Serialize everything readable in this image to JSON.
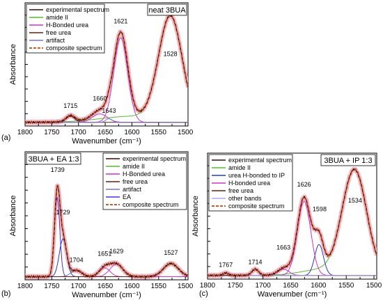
{
  "colors": {
    "experimental": "#3a0a0a",
    "halo": "#f2b5bf",
    "amide": "#55bb33",
    "hbonded": "#cc33cc",
    "hbonded_ip": "#2a3ab8",
    "free": "#5a2410",
    "artifact": "#7777cc",
    "ea": "#5a2ad0",
    "other": "#aaaaee",
    "composite": "#b84a10"
  },
  "chart_data": [
    {
      "id": "a",
      "type": "line",
      "panel_letter": "(a)",
      "title": "neat 3BUA",
      "xlabel": "Wavenumber (cm⁻¹)",
      "ylabel": "Absorbance",
      "xlim": [
        1800,
        1495
      ],
      "ylim": [
        -0.02,
        1.0
      ],
      "x_ticks": [
        1800,
        1750,
        1700,
        1650,
        1600,
        1550,
        1500
      ],
      "legend_position": "top-left",
      "legend": [
        {
          "label": "experimental spectrum",
          "color": "experimental",
          "style": "solid"
        },
        {
          "label": "amide II",
          "color": "amide",
          "style": "solid"
        },
        {
          "label": "H-Bonded urea",
          "color": "hbonded",
          "style": "solid"
        },
        {
          "label": "free urea",
          "color": "free",
          "style": "solid"
        },
        {
          "label": "artifact",
          "color": "artifact",
          "style": "solid"
        },
        {
          "label": "composite spectrum",
          "color": "composite",
          "style": "dashed"
        }
      ],
      "peaks": [
        {
          "label": "1715",
          "x": 1715,
          "y": 0.13
        },
        {
          "label": "1660",
          "x": 1660,
          "y": 0.19
        },
        {
          "label": "1643",
          "x": 1643,
          "y": 0.09
        },
        {
          "label": "1621",
          "x": 1621,
          "y": 0.83
        },
        {
          "label": "1528",
          "x": 1528,
          "y": 0.56
        }
      ],
      "baseline": 0.01,
      "components": [
        {
          "color": "amide",
          "peaks": [
            {
              "c": 1528,
              "w": 22,
              "h": 0.86
            },
            {
              "c": 1600,
              "w": 60,
              "h": 0.05
            }
          ]
        },
        {
          "color": "hbonded",
          "peaks": [
            {
              "c": 1621,
              "w": 13,
              "h": 0.7
            }
          ]
        },
        {
          "color": "hbonded",
          "peaks": [
            {
              "c": 1660,
              "w": 14,
              "h": 0.07
            }
          ]
        },
        {
          "color": "free",
          "peaks": [
            {
              "c": 1715,
              "w": 8,
              "h": 0.05
            }
          ]
        },
        {
          "color": "artifact",
          "peaks": [
            {
              "c": 1643,
              "w": 6,
              "h": 0.03
            }
          ]
        }
      ],
      "total_peaks": [
        {
          "c": 1528,
          "w": 22,
          "h": 0.86
        },
        {
          "c": 1600,
          "w": 60,
          "h": 0.05
        },
        {
          "c": 1621,
          "w": 13,
          "h": 0.7
        },
        {
          "c": 1660,
          "w": 14,
          "h": 0.07
        },
        {
          "c": 1715,
          "w": 8,
          "h": 0.05
        },
        {
          "c": 1643,
          "w": 6,
          "h": 0.03
        }
      ]
    },
    {
      "id": "b",
      "type": "line",
      "panel_letter": "(b)",
      "title": "3BUA + EA 1:3",
      "xlabel": "Wavenumber (cm⁻¹)",
      "ylabel": "Absorbance",
      "xlim": [
        1800,
        1495
      ],
      "ylim": [
        -0.02,
        1.0
      ],
      "x_ticks": [
        1800,
        1750,
        1700,
        1650,
        1600,
        1550,
        1500
      ],
      "legend_position": "top-right",
      "legend": [
        {
          "label": "experimental spectrum",
          "color": "experimental",
          "style": "solid"
        },
        {
          "label": "amide II",
          "color": "amide",
          "style": "solid"
        },
        {
          "label": "H-Bonded urea",
          "color": "hbonded",
          "style": "solid"
        },
        {
          "label": "free urea",
          "color": "free",
          "style": "solid"
        },
        {
          "label": "artifact",
          "color": "artifact",
          "style": "solid"
        },
        {
          "label": "EA",
          "color": "ea",
          "style": "solid"
        },
        {
          "label": "composite spectrum",
          "color": "composite",
          "style": "dashed"
        }
      ],
      "peaks": [
        {
          "label": "1739",
          "x": 1739,
          "y": 0.84
        },
        {
          "label": "1729",
          "x": 1729,
          "y": 0.5
        },
        {
          "label": "1704",
          "x": 1704,
          "y": 0.12
        },
        {
          "label": "1651",
          "x": 1651,
          "y": 0.17
        },
        {
          "label": "1629",
          "x": 1629,
          "y": 0.19
        },
        {
          "label": "1527",
          "x": 1527,
          "y": 0.18
        }
      ],
      "baseline": 0.005,
      "components": [
        {
          "color": "ea",
          "peaks": [
            {
              "c": 1740,
              "w": 5,
              "h": 0.63
            }
          ]
        },
        {
          "color": "hbonded_ip",
          "peaks": [
            {
              "c": 1729,
              "w": 7,
              "h": 0.3
            }
          ]
        },
        {
          "color": "artifact",
          "peaks": [
            {
              "c": 1704,
              "w": 10,
              "h": 0.05
            }
          ]
        },
        {
          "color": "hbonded",
          "peaks": [
            {
              "c": 1651,
              "w": 10,
              "h": 0.07
            }
          ]
        },
        {
          "color": "hbonded",
          "peaks": [
            {
              "c": 1629,
              "w": 12,
              "h": 0.1
            }
          ]
        },
        {
          "color": "amide",
          "peaks": [
            {
              "c": 1527,
              "w": 14,
              "h": 0.1
            }
          ]
        },
        {
          "color": "free",
          "peaks": [
            {
              "c": 1527,
              "w": 14,
              "h": 0.105
            }
          ]
        }
      ],
      "total_peaks": [
        {
          "c": 1740,
          "w": 5,
          "h": 0.63
        },
        {
          "c": 1729,
          "w": 7,
          "h": 0.3
        },
        {
          "c": 1704,
          "w": 10,
          "h": 0.05
        },
        {
          "c": 1651,
          "w": 10,
          "h": 0.07
        },
        {
          "c": 1629,
          "w": 12,
          "h": 0.1
        },
        {
          "c": 1527,
          "w": 14,
          "h": 0.105
        }
      ]
    },
    {
      "id": "c",
      "type": "line",
      "panel_letter": "(c)",
      "title": "3BUA + IP 1:3",
      "xlabel": "Wavenumber (cm⁻¹)",
      "ylabel": "Absorbance",
      "xlim": [
        1800,
        1495
      ],
      "ylim": [
        -0.02,
        1.0
      ],
      "x_ticks": [
        1800,
        1750,
        1700,
        1650,
        1600,
        1550,
        1500
      ],
      "legend_position": "top-left",
      "legend": [
        {
          "label": "experimental spectrum",
          "color": "experimental",
          "style": "solid"
        },
        {
          "label": "amide II",
          "color": "amide",
          "style": "solid"
        },
        {
          "label": "urea H-bonded to IP",
          "color": "hbonded_ip",
          "style": "solid"
        },
        {
          "label": "H-bonded urea",
          "color": "hbonded",
          "style": "solid"
        },
        {
          "label": "free urea",
          "color": "free",
          "style": "solid"
        },
        {
          "label": "other bands",
          "color": "other",
          "style": "solid"
        },
        {
          "label": "composite spectrum",
          "color": "composite",
          "style": "dashed"
        }
      ],
      "peaks": [
        {
          "label": "1767",
          "x": 1767,
          "y": 0.08
        },
        {
          "label": "1714",
          "x": 1714,
          "y": 0.1
        },
        {
          "label": "1663",
          "x": 1663,
          "y": 0.22
        },
        {
          "label": "1626",
          "x": 1626,
          "y": 0.73
        },
        {
          "label": "1598",
          "x": 1598,
          "y": 0.53
        },
        {
          "label": "1534",
          "x": 1534,
          "y": 0.6
        }
      ],
      "baseline": 0.01,
      "components": [
        {
          "color": "amide",
          "peaks": [
            {
              "c": 1535,
              "w": 22,
              "h": 0.84
            },
            {
              "c": 1590,
              "w": 40,
              "h": 0.05
            }
          ]
        },
        {
          "color": "hbonded_ip",
          "peaks": [
            {
              "c": 1599,
              "w": 8,
              "h": 0.25
            }
          ]
        },
        {
          "color": "hbonded",
          "peaks": [
            {
              "c": 1626,
              "w": 12,
              "h": 0.6
            }
          ]
        },
        {
          "color": "hbonded",
          "peaks": [
            {
              "c": 1663,
              "w": 10,
              "h": 0.05
            }
          ]
        },
        {
          "color": "free",
          "peaks": [
            {
              "c": 1714,
              "w": 6,
              "h": 0.05
            }
          ]
        },
        {
          "color": "other",
          "peaks": [
            {
              "c": 1767,
              "w": 5,
              "h": 0.02
            }
          ]
        }
      ],
      "total_peaks": [
        {
          "c": 1535,
          "w": 22,
          "h": 0.84
        },
        {
          "c": 1590,
          "w": 40,
          "h": 0.05
        },
        {
          "c": 1599,
          "w": 8,
          "h": 0.25
        },
        {
          "c": 1626,
          "w": 12,
          "h": 0.6
        },
        {
          "c": 1663,
          "w": 10,
          "h": 0.05
        },
        {
          "c": 1714,
          "w": 6,
          "h": 0.05
        },
        {
          "c": 1767,
          "w": 5,
          "h": 0.02
        }
      ]
    }
  ]
}
